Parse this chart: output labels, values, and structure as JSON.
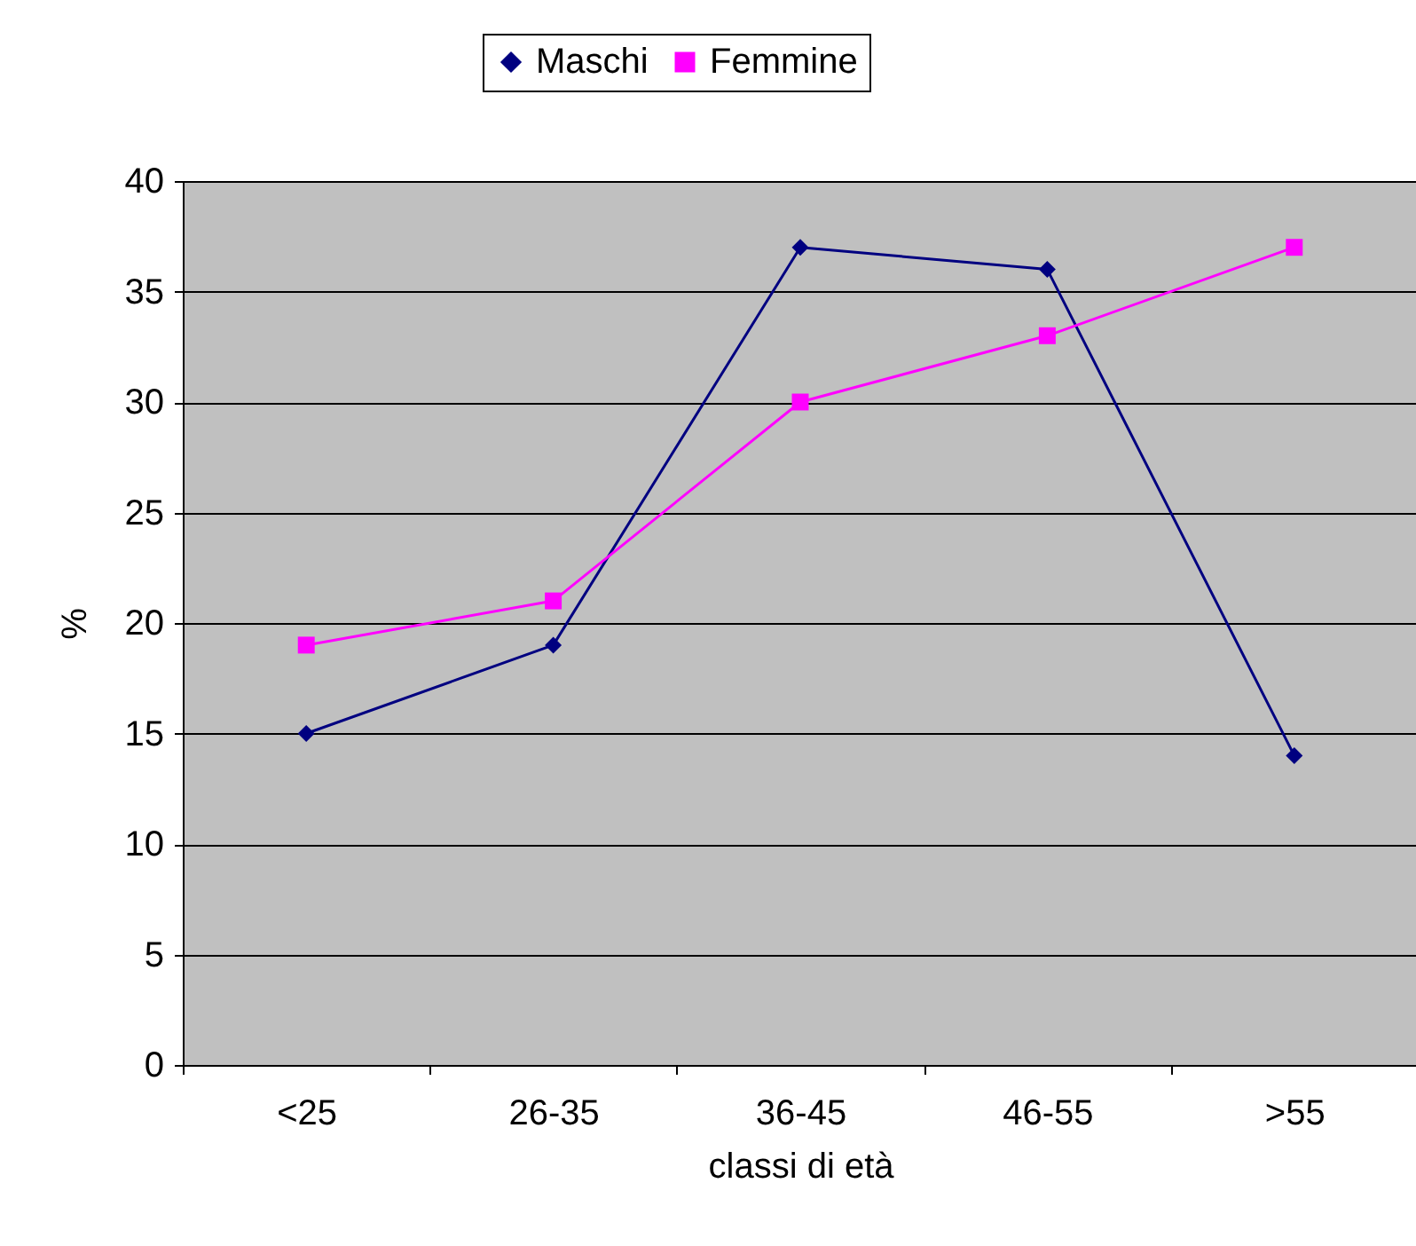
{
  "chart_data": {
    "type": "line",
    "xlabel": "classi di età",
    "ylabel": "%",
    "categories": [
      "<25",
      "26-35",
      "36-45",
      "46-55",
      ">55"
    ],
    "series": [
      {
        "name": "Maschi",
        "color": "#000080",
        "marker": "diamond",
        "values": [
          15,
          19,
          37,
          36,
          14
        ]
      },
      {
        "name": "Femmine",
        "color": "#ff00ff",
        "marker": "square",
        "values": [
          19,
          21,
          30,
          33,
          37
        ]
      }
    ],
    "ylim": [
      0,
      40
    ],
    "yticks": [
      0,
      5,
      10,
      15,
      20,
      25,
      30,
      35,
      40
    ],
    "grid": "y",
    "legend": "top",
    "line_style": "solid"
  }
}
